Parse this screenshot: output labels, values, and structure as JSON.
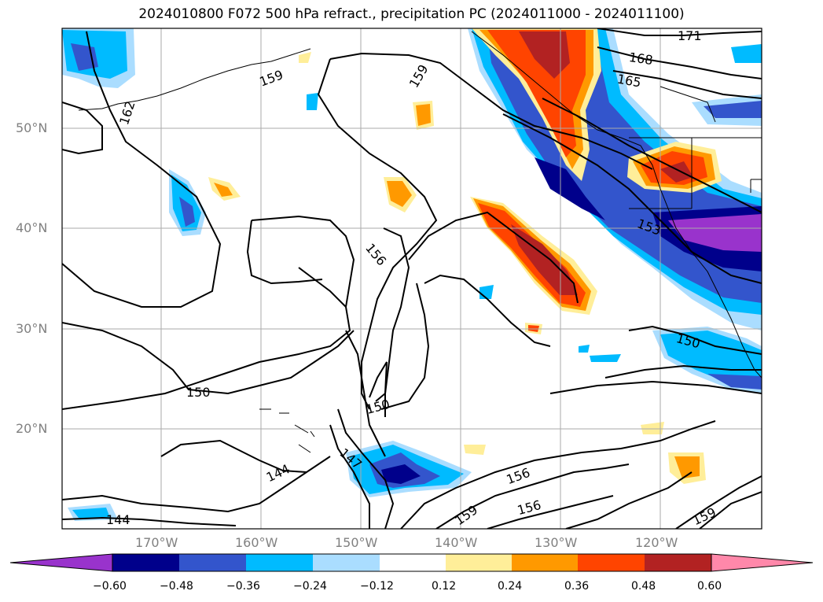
{
  "title": "2024010800 F072 500 hPa refract., precipitation PC (2024011000 - 2024011100)",
  "lat_labels": [
    "50°N",
    "40°N",
    "30°N",
    "20°N"
  ],
  "lon_labels": [
    "170°W",
    "160°W",
    "150°W",
    "140°W",
    "130°W",
    "120°W"
  ],
  "contour_labels": [
    "171",
    "168",
    "165",
    "162",
    "159",
    "159",
    "156",
    "153",
    "150",
    "150",
    "150",
    "147",
    "144",
    "144",
    "156",
    "159",
    "156",
    "159"
  ],
  "colorbar": {
    "ticks": [
      "−0.60",
      "−0.48",
      "−0.36",
      "−0.24",
      "−0.12",
      "0.12",
      "0.24",
      "0.36",
      "0.48",
      "0.60"
    ],
    "colors": [
      "#9933cc",
      "#00008b",
      "#3355cc",
      "#00bbff",
      "#aaddff",
      "#ffffff",
      "#ffee99",
      "#ff9900",
      "#ff4400",
      "#b22222",
      "#ff88aa"
    ]
  },
  "shading_colors": {
    "neg1": "#aaddff",
    "neg2": "#00bbff",
    "neg3": "#3355cc",
    "neg4": "#00008b",
    "neg5": "#9933cc",
    "pos1": "#ffee99",
    "pos2": "#ff9900",
    "pos3": "#ff4400",
    "pos4": "#b22222"
  }
}
